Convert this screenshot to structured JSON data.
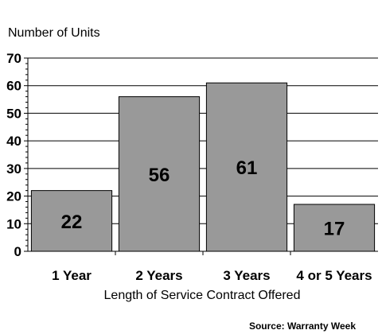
{
  "chart_data": {
    "type": "bar",
    "categories": [
      "1 Year",
      "2 Years",
      "3 Years",
      "4 or 5 Years"
    ],
    "values": [
      22,
      56,
      61,
      17
    ],
    "data_labels": [
      "22",
      "56",
      "61",
      "17"
    ],
    "ylabel": "Number of Units",
    "xlabel": "Length of Service Contract Offered",
    "ylim": [
      0,
      70
    ],
    "yticks": [
      0,
      10,
      20,
      30,
      40,
      50,
      60,
      70
    ],
    "grid": true,
    "bar_color": "#999999",
    "bar_edge_color": "#000000"
  },
  "source": "Source: Warranty Week"
}
